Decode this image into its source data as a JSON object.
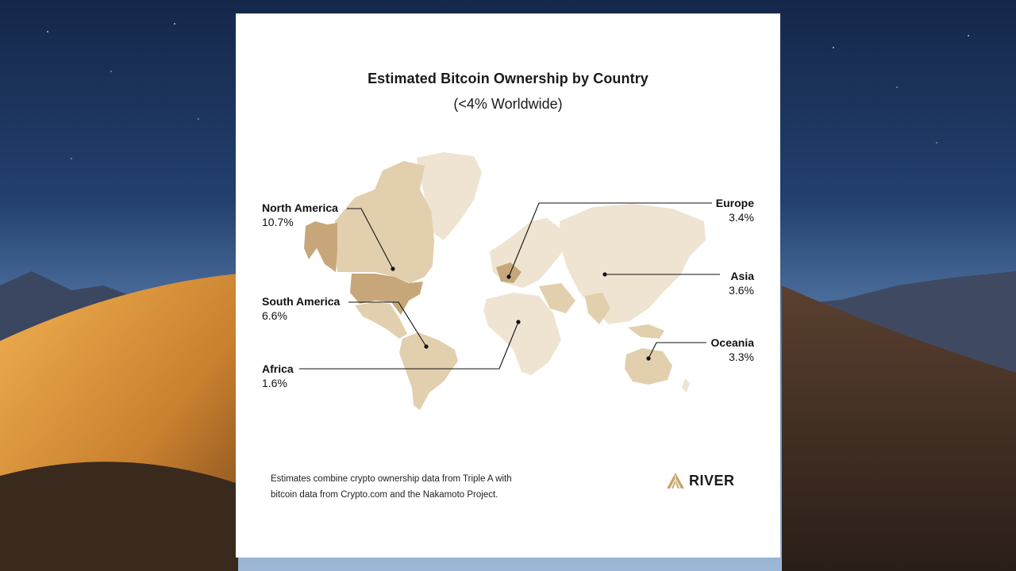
{
  "title": "Estimated Bitcoin Ownership by Country",
  "subtitle": "(<4% Worldwide)",
  "regions": [
    {
      "name": "North America",
      "value": "10.7%"
    },
    {
      "name": "South America",
      "value": "6.6%"
    },
    {
      "name": "Africa",
      "value": "1.6%"
    },
    {
      "name": "Europe",
      "value": "3.4%"
    },
    {
      "name": "Asia",
      "value": "3.6%"
    },
    {
      "name": "Oceania",
      "value": "3.3%"
    }
  ],
  "footnote": {
    "line1": "Estimates combine crypto ownership data from Triple A with",
    "line2": "bitcoin data from Crypto.com and the Nakamoto Project."
  },
  "logo": {
    "text": "RIVER",
    "icon": "river-mountain-icon"
  },
  "colors": {
    "map_light": "#efe4d1",
    "map_mid": "#e2cfae",
    "map_dark": "#c7a77a",
    "accent_gold": "#c9a56c"
  }
}
